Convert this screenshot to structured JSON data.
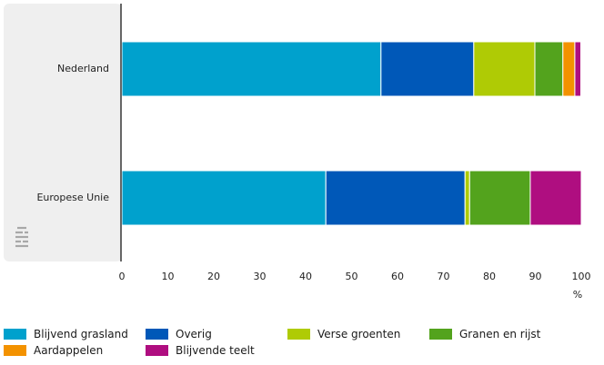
{
  "chart_data": {
    "type": "bar",
    "orientation": "horizontal",
    "stacked": true,
    "categories": [
      "Nederland",
      "Europese Unie"
    ],
    "series": [
      {
        "name": "Blijvend grasland",
        "color": "#00a1cd",
        "values": [
          56.4,
          44.4
        ]
      },
      {
        "name": "Overig",
        "color": "#0058b8",
        "values": [
          20.2,
          30.3
        ]
      },
      {
        "name": "Verse groenten",
        "color": "#afcb05",
        "values": [
          13.3,
          1.0
        ]
      },
      {
        "name": "Granen en rijst",
        "color": "#53a31d",
        "values": [
          6.1,
          13.2
        ]
      },
      {
        "name": "Aardappelen",
        "color": "#f39200",
        "values": [
          2.6,
          0.0
        ]
      },
      {
        "name": "Blijvende teelt",
        "color": "#af0e80",
        "values": [
          1.3,
          11.1
        ]
      }
    ],
    "xlim": [
      0,
      100
    ],
    "xticks": [
      "0",
      "10",
      "20",
      "30",
      "40",
      "50",
      "60",
      "70",
      "80",
      "90",
      "100"
    ],
    "xunit": "%",
    "legend_position": "bottom",
    "grid": false
  }
}
